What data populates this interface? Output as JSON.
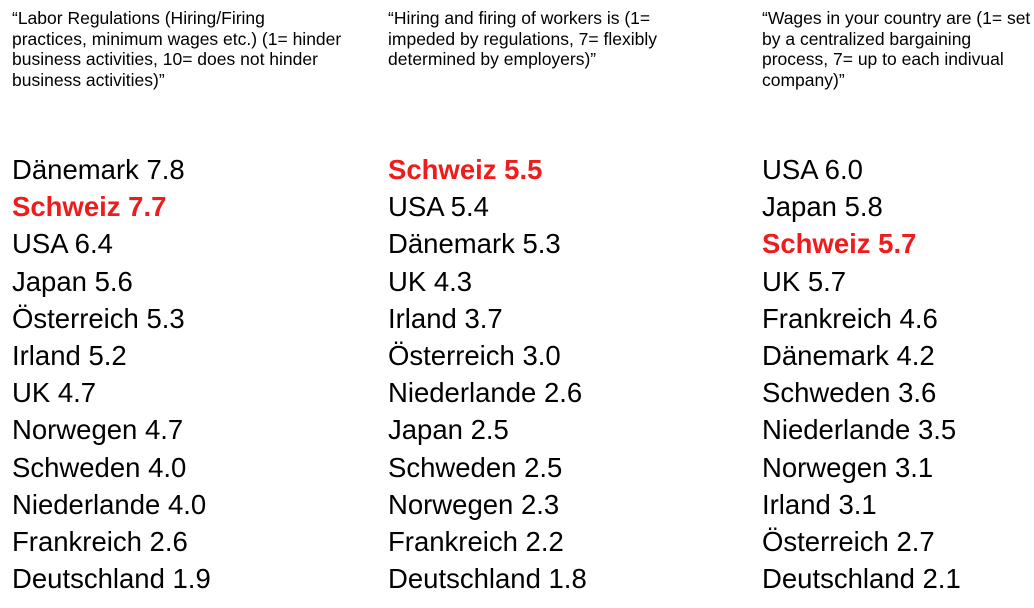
{
  "colors": {
    "highlight": "#ee1c1c",
    "text": "#000000",
    "background": "#ffffff"
  },
  "columns": [
    {
      "header": "“Labor Regulations (Hiring/Firing practices, minimum wages etc.) (1= hinder business activities, 10= does not hinder business activities)”",
      "rows": [
        {
          "country": "Dänemark",
          "score": "7.8",
          "highlight": false
        },
        {
          "country": "Schweiz",
          "score": "7.7",
          "highlight": true
        },
        {
          "country": "USA",
          "score": "6.4",
          "highlight": false
        },
        {
          "country": "Japan",
          "score": "5.6",
          "highlight": false
        },
        {
          "country": "Österreich",
          "score": "5.3",
          "highlight": false
        },
        {
          "country": "Irland",
          "score": "5.2",
          "highlight": false
        },
        {
          "country": "UK",
          "score": "4.7",
          "highlight": false
        },
        {
          "country": "Norwegen",
          "score": "4.7",
          "highlight": false
        },
        {
          "country": "Schweden",
          "score": "4.0",
          "highlight": false
        },
        {
          "country": "Niederlande",
          "score": "4.0",
          "highlight": false
        },
        {
          "country": "Frankreich",
          "score": "2.6",
          "highlight": false
        },
        {
          "country": "Deutschland",
          "score": "1.9",
          "highlight": false
        }
      ]
    },
    {
      "header": "“Hiring and firing of workers is (1= impeded by regulations, 7= flexibly determined by employers)”",
      "rows": [
        {
          "country": "Schweiz",
          "score": "5.5",
          "highlight": true
        },
        {
          "country": "USA",
          "score": "5.4",
          "highlight": false
        },
        {
          "country": "Dänemark",
          "score": "5.3",
          "highlight": false
        },
        {
          "country": "UK",
          "score": "4.3",
          "highlight": false
        },
        {
          "country": "Irland",
          "score": "3.7",
          "highlight": false
        },
        {
          "country": "Österreich",
          "score": "3.0",
          "highlight": false
        },
        {
          "country": "Niederlande",
          "score": "2.6",
          "highlight": false
        },
        {
          "country": "Japan",
          "score": "2.5",
          "highlight": false
        },
        {
          "country": "Schweden",
          "score": "2.5",
          "highlight": false
        },
        {
          "country": "Norwegen",
          "score": "2.3",
          "highlight": false
        },
        {
          "country": "Frankreich",
          "score": "2.2",
          "highlight": false
        },
        {
          "country": "Deutschland",
          "score": "1.8",
          "highlight": false
        }
      ]
    },
    {
      "header": "“Wages in your country are (1= set by a centralized bargaining process, 7= up to each indivual company)”",
      "rows": [
        {
          "country": "USA",
          "score": "6.0",
          "highlight": false
        },
        {
          "country": "Japan",
          "score": "5.8",
          "highlight": false
        },
        {
          "country": "Schweiz",
          "score": "5.7",
          "highlight": true
        },
        {
          "country": "UK",
          "score": "5.7",
          "highlight": false
        },
        {
          "country": "Frankreich",
          "score": "4.6",
          "highlight": false
        },
        {
          "country": "Dänemark",
          "score": "4.2",
          "highlight": false
        },
        {
          "country": "Schweden",
          "score": "3.6",
          "highlight": false
        },
        {
          "country": "Niederlande",
          "score": "3.5",
          "highlight": false
        },
        {
          "country": "Norwegen",
          "score": "3.1",
          "highlight": false
        },
        {
          "country": "Irland",
          "score": "3.1",
          "highlight": false
        },
        {
          "country": "Österreich",
          "score": "2.7",
          "highlight": false
        },
        {
          "country": "Deutschland",
          "score": "2.1",
          "highlight": false
        }
      ]
    }
  ]
}
